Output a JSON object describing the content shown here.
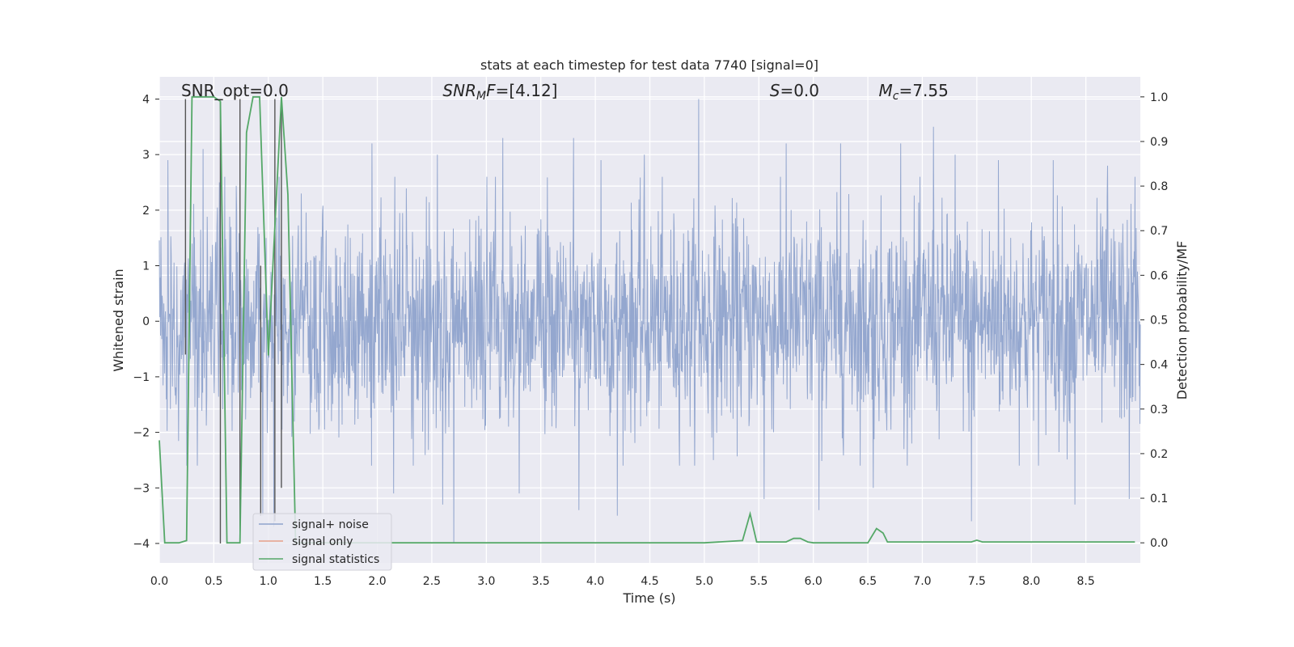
{
  "chart_data": {
    "type": "line",
    "title": "stats at each timestep for test data 7740 [signal=0]",
    "xlabel": "Time (s)",
    "ylabel": "Whitened strain",
    "y2label": "Detection probability/MF",
    "xlim": [
      0.0,
      9.0
    ],
    "ylim": [
      -4.35,
      4.4
    ],
    "y2lim": [
      -0.045,
      1.045
    ],
    "xticks": [
      0.0,
      0.5,
      1.0,
      1.5,
      2.0,
      2.5,
      3.0,
      3.5,
      4.0,
      4.5,
      5.0,
      5.5,
      6.0,
      6.5,
      7.0,
      7.5,
      8.0,
      8.5
    ],
    "xtick_labels": [
      "0.0",
      "0.5",
      "1.0",
      "1.5",
      "2.0",
      "2.5",
      "3.0",
      "3.5",
      "4.0",
      "4.5",
      "5.0",
      "5.5",
      "6.0",
      "6.5",
      "7.0",
      "7.5",
      "8.0",
      "8.5"
    ],
    "yticks": [
      -4,
      -3,
      -2,
      -1,
      0,
      1,
      2,
      3,
      4
    ],
    "ytick_labels": [
      "−4",
      "−3",
      "−2",
      "−1",
      "0",
      "1",
      "2",
      "3",
      "4"
    ],
    "y2ticks": [
      0.0,
      0.1,
      0.2,
      0.3,
      0.4,
      0.5,
      0.6,
      0.7,
      0.8,
      0.9,
      1.0
    ],
    "y2tick_labels": [
      "0.0",
      "0.1",
      "0.2",
      "0.3",
      "0.4",
      "0.5",
      "0.6",
      "0.7",
      "0.8",
      "0.9",
      "1.0"
    ],
    "annotations": [
      {
        "id": "snr-opt",
        "text": "SNR_opt=0.0",
        "x": 0.2
      },
      {
        "id": "snr-mf",
        "text": "SNRMF=[4.12]",
        "x": 2.6
      },
      {
        "id": "s",
        "text": "S=0.0",
        "x": 5.6
      },
      {
        "id": "mc",
        "text": "Mc=7.55",
        "x": 6.6
      }
    ],
    "annotation_y": 4.15,
    "legend": {
      "placement": "lower-left",
      "entries": [
        {
          "label": "signal+ noise",
          "color": "#8fa3cc"
        },
        {
          "label": "signal only",
          "color": "#e8a08a"
        },
        {
          "label": "signal statistics",
          "color": "#55a868"
        }
      ]
    },
    "series": [
      {
        "name": "signal+ noise",
        "color": "#8fa3cc",
        "note": "dense whitened strain noise, approx. samples shown as envelope",
        "seed": 7740,
        "n_samples": 2400,
        "sigma": 0.95,
        "peaks": [
          [
            0.08,
            2.9
          ],
          [
            0.4,
            3.1
          ],
          [
            0.55,
            2.5
          ],
          [
            1.1,
            2.6
          ],
          [
            1.3,
            2.3
          ],
          [
            1.95,
            3.2
          ],
          [
            2.15,
            3.1
          ],
          [
            2.55,
            3.0
          ],
          [
            3.15,
            3.3
          ],
          [
            3.8,
            3.3
          ],
          [
            4.05,
            2.9
          ],
          [
            4.45,
            3.0
          ],
          [
            4.95,
            4.0
          ],
          [
            5.75,
            3.2
          ],
          [
            6.25,
            3.2
          ],
          [
            6.8,
            3.2
          ],
          [
            7.1,
            3.5
          ],
          [
            7.3,
            3.0
          ],
          [
            7.7,
            2.9
          ],
          [
            8.2,
            2.9
          ],
          [
            8.7,
            2.8
          ],
          [
            8.95,
            2.6
          ]
        ],
        "troughs": [
          [
            0.35,
            -2.6
          ],
          [
            0.95,
            -3.5
          ],
          [
            1.05,
            -3.7
          ],
          [
            2.15,
            -3.1
          ],
          [
            2.6,
            -3.3
          ],
          [
            2.7,
            -4.0
          ],
          [
            3.3,
            -3.1
          ],
          [
            3.85,
            -3.4
          ],
          [
            4.2,
            -3.5
          ],
          [
            5.55,
            -3.2
          ],
          [
            6.05,
            -3.4
          ],
          [
            6.55,
            -3.0
          ],
          [
            7.45,
            -3.6
          ],
          [
            8.4,
            -3.3
          ],
          [
            8.9,
            -3.2
          ]
        ]
      },
      {
        "name": "signal only",
        "color": "#e8a08a",
        "x": [],
        "y": []
      },
      {
        "name": "signal statistics",
        "color": "#55a868",
        "axis": "right",
        "x": [
          0.0,
          0.05,
          0.18,
          0.25,
          0.3,
          0.5,
          0.56,
          0.62,
          0.74,
          0.8,
          0.86,
          0.92,
          1.0,
          1.12,
          1.18,
          1.25,
          1.4,
          2.0,
          3.0,
          4.0,
          5.0,
          5.35,
          5.42,
          5.48,
          5.75,
          5.82,
          5.88,
          5.95,
          6.0,
          6.5,
          6.5,
          6.58,
          6.64,
          6.68,
          7.0,
          7.45,
          7.5,
          7.55,
          8.0,
          8.5,
          8.95
        ],
        "y": [
          0.23,
          0.0,
          0.0,
          0.005,
          1.0,
          1.0,
          0.99,
          0.0,
          0.0,
          0.92,
          1.0,
          1.0,
          0.42,
          1.0,
          0.78,
          0.0,
          0.0,
          0.0,
          0.0,
          0.0,
          0.0,
          0.005,
          0.065,
          0.002,
          0.002,
          0.01,
          0.01,
          0.002,
          0.0,
          0.0,
          0.0,
          0.032,
          0.022,
          0.002,
          0.002,
          0.002,
          0.006,
          0.002,
          0.002,
          0.002,
          0.002
        ]
      }
    ],
    "event_markers": {
      "name": "detection vertical lines",
      "color": "#555555",
      "x": [
        0.24,
        0.56,
        0.74,
        0.93,
        1.06,
        1.12
      ],
      "y_top": [
        4.0,
        3.95,
        4.0,
        1.0,
        4.0,
        4.0
      ],
      "y_bottom": [
        -0.6,
        -4.0,
        -4.0,
        -3.5,
        -3.6,
        -3.0
      ]
    }
  }
}
